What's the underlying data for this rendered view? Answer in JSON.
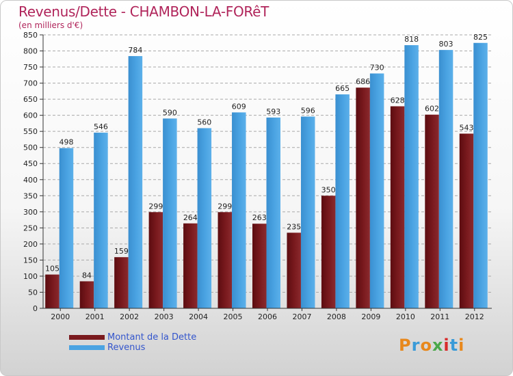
{
  "title": "Revenus/Dette - CHAMBON-LA-FORêT",
  "subtitle": "(en milliers d'€)",
  "logo_text": "Proxiti",
  "colors": {
    "dette": "#7a1a1e",
    "revenus": "#4aa3e2",
    "title": "#b0245a",
    "legend_text": "#3355cc"
  },
  "chart_data": {
    "type": "bar",
    "categories": [
      "2000",
      "2001",
      "2002",
      "2003",
      "2004",
      "2005",
      "2006",
      "2007",
      "2008",
      "2009",
      "2010",
      "2011",
      "2012"
    ],
    "series": [
      {
        "name": "Montant de la Dette",
        "values": [
          105,
          84,
          159,
          299,
          264,
          299,
          263,
          235,
          350,
          686,
          628,
          602,
          543
        ]
      },
      {
        "name": "Revenus",
        "values": [
          498,
          546,
          784,
          590,
          560,
          609,
          593,
          596,
          665,
          730,
          818,
          803,
          825
        ]
      }
    ],
    "ylim": [
      0,
      850
    ],
    "yticks": [
      0,
      50,
      100,
      150,
      200,
      250,
      300,
      350,
      400,
      450,
      500,
      550,
      600,
      650,
      700,
      750,
      800,
      850
    ],
    "grid": true,
    "legend_position": "bottom-left"
  }
}
